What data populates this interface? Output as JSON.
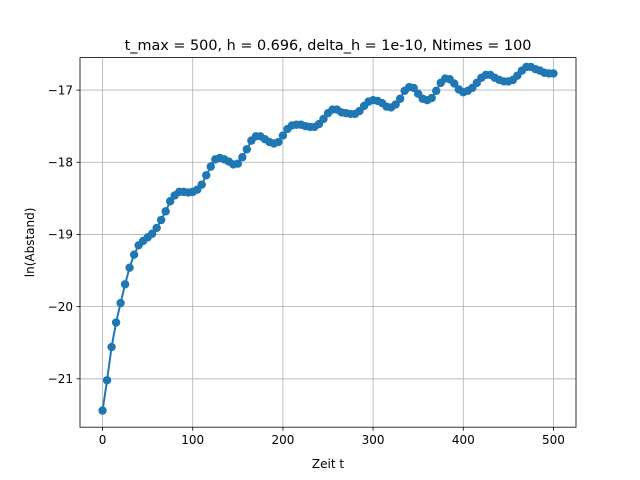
{
  "chart_data": {
    "type": "line",
    "title": "t_max = 500, h = 0.696, delta_h = 1e-10, Ntimes = 100",
    "xlabel": "Zeit t",
    "ylabel": "ln(Abstand)",
    "xlim": [
      -25,
      525
    ],
    "ylim": [
      -21.67,
      -16.55
    ],
    "xticks": [
      0,
      100,
      200,
      300,
      400,
      500
    ],
    "yticks": [
      -21,
      -20,
      -19,
      -18,
      -17
    ],
    "xtick_labels": [
      "0",
      "100",
      "200",
      "300",
      "400",
      "500"
    ],
    "ytick_labels": [
      "−21",
      "−20",
      "−19",
      "−18",
      "−17"
    ],
    "grid": true,
    "series_color": "#1f77b4",
    "marker": "circle",
    "series": [
      {
        "x": [
          0,
          5,
          10,
          15,
          20,
          25,
          30,
          35,
          40,
          45,
          50,
          55,
          60,
          65,
          70,
          75,
          80,
          85,
          90,
          95,
          100,
          105,
          110,
          115,
          120,
          125,
          130,
          135,
          140,
          145,
          150,
          155,
          160,
          165,
          170,
          175,
          180,
          185,
          190,
          195,
          200,
          205,
          210,
          215,
          220,
          225,
          230,
          235,
          240,
          245,
          250,
          255,
          260,
          265,
          270,
          275,
          280,
          285,
          290,
          295,
          300,
          305,
          310,
          315,
          320,
          325,
          330,
          335,
          340,
          345,
          350,
          355,
          360,
          365,
          370,
          375,
          380,
          385,
          390,
          395,
          400,
          405,
          410,
          415,
          420,
          425,
          430,
          435,
          440,
          445,
          450,
          455,
          460,
          465,
          470,
          475,
          480,
          485,
          490,
          495,
          500
        ],
        "y": [
          -21.44,
          -21.02,
          -20.56,
          -20.22,
          -19.95,
          -19.69,
          -19.46,
          -19.28,
          -19.15,
          -19.09,
          -19.04,
          -18.99,
          -18.91,
          -18.8,
          -18.68,
          -18.54,
          -18.46,
          -18.41,
          -18.41,
          -18.42,
          -18.41,
          -18.38,
          -18.31,
          -18.18,
          -18.06,
          -17.96,
          -17.94,
          -17.96,
          -17.99,
          -18.03,
          -18.02,
          -17.93,
          -17.82,
          -17.7,
          -17.64,
          -17.64,
          -17.68,
          -17.72,
          -17.74,
          -17.72,
          -17.63,
          -17.54,
          -17.49,
          -17.48,
          -17.48,
          -17.5,
          -17.51,
          -17.51,
          -17.47,
          -17.4,
          -17.32,
          -17.27,
          -17.27,
          -17.31,
          -17.32,
          -17.33,
          -17.33,
          -17.29,
          -17.22,
          -17.16,
          -17.14,
          -17.15,
          -17.18,
          -17.23,
          -17.24,
          -17.2,
          -17.12,
          -17.01,
          -16.96,
          -16.97,
          -17.05,
          -17.12,
          -17.14,
          -17.11,
          -17.01,
          -16.9,
          -16.84,
          -16.85,
          -16.91,
          -16.99,
          -17.03,
          -17.01,
          -16.97,
          -16.9,
          -16.83,
          -16.79,
          -16.79,
          -16.83,
          -16.86,
          -16.88,
          -16.88,
          -16.86,
          -16.8,
          -16.73,
          -16.68,
          -16.68,
          -16.71,
          -16.73,
          -16.76,
          -16.77,
          -16.77
        ]
      }
    ]
  }
}
